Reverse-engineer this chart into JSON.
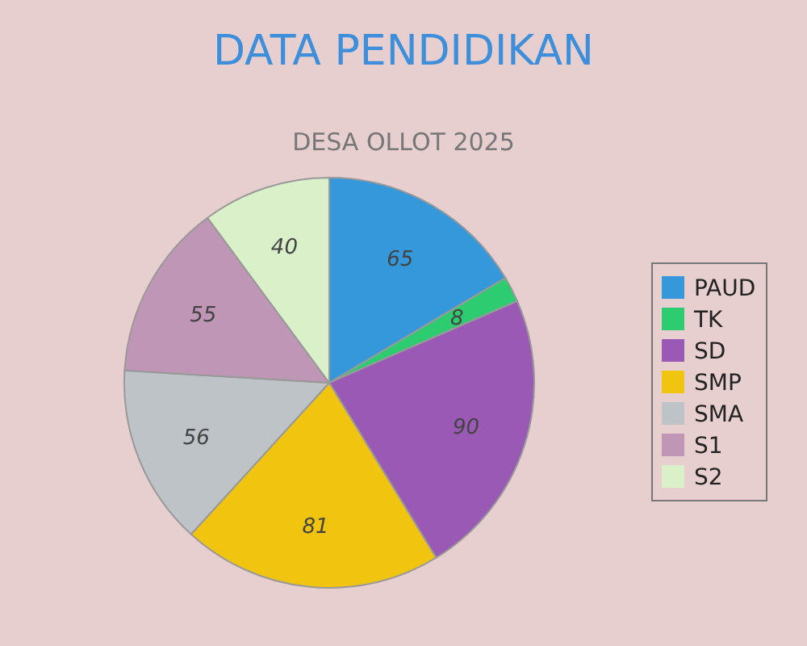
{
  "chart_data": {
    "type": "pie",
    "title": "DATA PENDIDIKAN",
    "subtitle": "DESA OLLOT 2025",
    "categories": [
      "PAUD",
      "TK",
      "SD",
      "SMP",
      "SMA",
      "S1",
      "S2"
    ],
    "values": [
      65,
      8,
      90,
      81,
      56,
      55,
      40
    ],
    "colors": [
      "#3498db",
      "#2ecc71",
      "#9b59b6",
      "#f1c40f",
      "#bdc3c7",
      "#c096b6",
      "#d9f0c8"
    ],
    "data_labels": true,
    "legend": "right"
  }
}
